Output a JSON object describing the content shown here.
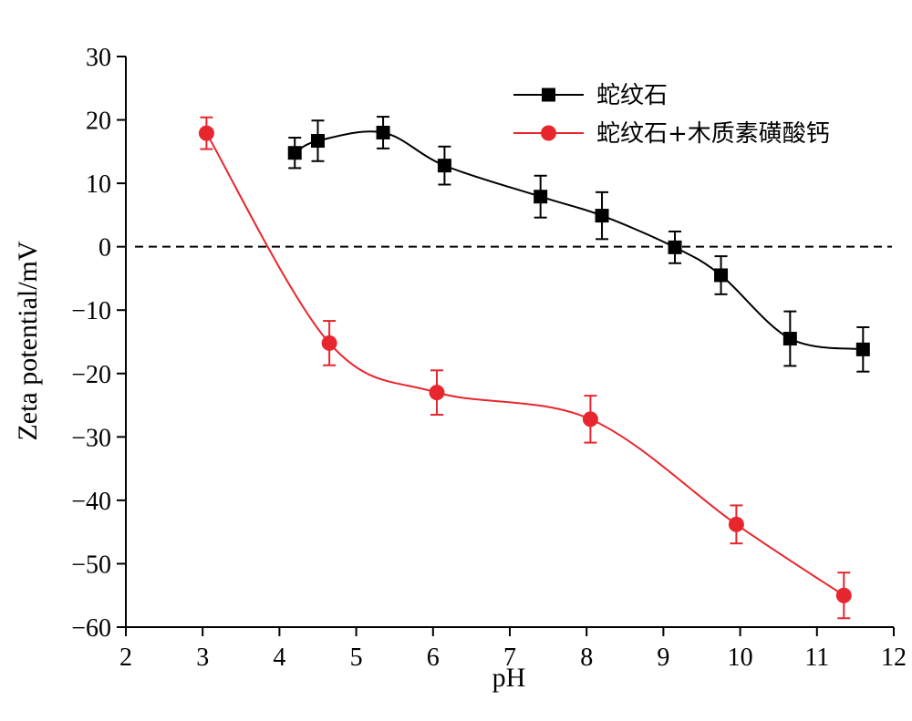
{
  "chart_data": {
    "type": "line",
    "xlabel": "pH",
    "ylabel": "Zeta potential/mV",
    "xlim": [
      2,
      12
    ],
    "ylim": [
      -60,
      30
    ],
    "x_ticks": [
      2,
      3,
      4,
      5,
      6,
      7,
      8,
      9,
      10,
      11,
      12
    ],
    "y_ticks": [
      30,
      20,
      10,
      0,
      -10,
      -20,
      -30,
      -40,
      -50,
      -60
    ],
    "x_tick_labels": [
      "2",
      "3",
      "4",
      "5",
      "6",
      "7",
      "8",
      "9",
      "10",
      "11",
      "12"
    ],
    "y_tick_labels": [
      "30",
      "20",
      "10",
      "0",
      "−10",
      "−20",
      "−30",
      "−40",
      "−50",
      "−60"
    ],
    "reference_line": {
      "y": 0,
      "style": "dashed",
      "color": "#000000"
    },
    "legend_position": "top-right",
    "series": [
      {
        "name": "蛇纹石",
        "color": "#000000",
        "marker": "square",
        "x": [
          4.2,
          4.5,
          5.35,
          6.15,
          7.4,
          8.2,
          9.15,
          9.75,
          10.65,
          11.6
        ],
        "y": [
          14.8,
          16.7,
          18.0,
          12.8,
          7.9,
          4.9,
          -0.1,
          -4.5,
          -14.5,
          -16.2
        ],
        "err": [
          2.4,
          3.2,
          2.5,
          3.0,
          3.3,
          3.7,
          2.5,
          3.0,
          4.3,
          3.5
        ]
      },
      {
        "name": "蛇纹石+木质素磺酸钙",
        "color": "#e8262d",
        "marker": "circle",
        "x": [
          3.05,
          4.65,
          6.05,
          8.05,
          9.95,
          11.35
        ],
        "y": [
          17.9,
          -15.2,
          -23.0,
          -27.2,
          -43.8,
          -55.0
        ],
        "err": [
          2.5,
          3.5,
          3.5,
          3.7,
          3.0,
          3.6
        ]
      }
    ]
  }
}
